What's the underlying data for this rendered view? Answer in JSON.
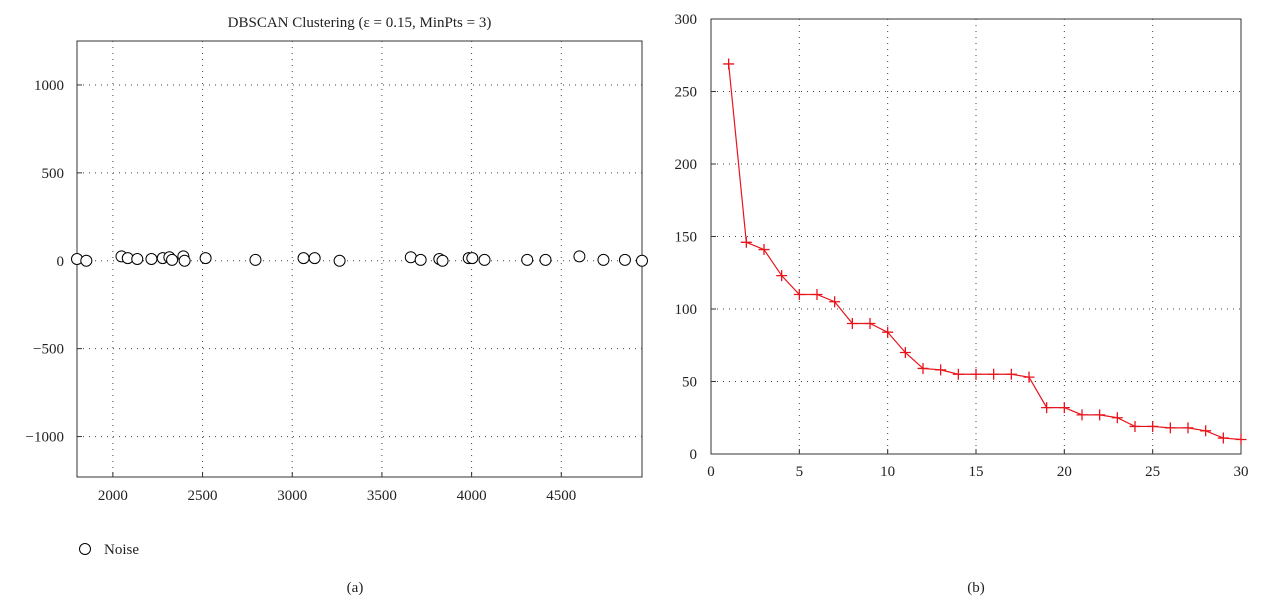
{
  "chart_data": [
    {
      "type": "scatter",
      "title": "DBSCAN Clustering (ε = 0.15, MinPts = 3)",
      "panel_label": "(a)",
      "xlim": [
        1800,
        4950
      ],
      "ylim": [
        -1230,
        1250
      ],
      "xticks": [
        2000,
        2500,
        3000,
        3500,
        4000,
        4500
      ],
      "yticks": [
        1000,
        500,
        0,
        -500,
        -1000
      ],
      "ytick_labels": [
        "1000",
        "500",
        "0",
        "−500",
        "−1000"
      ],
      "grid": true,
      "legend": {
        "position": "bottom-left",
        "entries": [
          {
            "marker": "open-circle",
            "label": "Noise"
          }
        ]
      },
      "series": [
        {
          "name": "Noise",
          "marker": "open-circle",
          "color": "#000000",
          "points": [
            [
              1800,
              10
            ],
            [
              1852,
              0
            ],
            [
              2048,
              25
            ],
            [
              2083,
              15
            ],
            [
              2136,
              10
            ],
            [
              2215,
              10
            ],
            [
              2278,
              15
            ],
            [
              2315,
              20
            ],
            [
              2330,
              5
            ],
            [
              2393,
              25
            ],
            [
              2400,
              0
            ],
            [
              2517,
              15
            ],
            [
              2795,
              5
            ],
            [
              3063,
              15
            ],
            [
              3125,
              15
            ],
            [
              3264,
              0
            ],
            [
              3661,
              20
            ],
            [
              3716,
              5
            ],
            [
              3820,
              10
            ],
            [
              3838,
              0
            ],
            [
              3984,
              15
            ],
            [
              4004,
              15
            ],
            [
              4072,
              5
            ],
            [
              4310,
              5
            ],
            [
              4412,
              5
            ],
            [
              4601,
              25
            ],
            [
              4735,
              5
            ],
            [
              4855,
              5
            ],
            [
              4950,
              0
            ]
          ]
        }
      ]
    },
    {
      "type": "line",
      "panel_label": "(b)",
      "xlim": [
        0,
        30
      ],
      "ylim": [
        0,
        300
      ],
      "xticks": [
        0,
        5,
        10,
        15,
        20,
        25,
        30
      ],
      "yticks": [
        0,
        50,
        100,
        150,
        200,
        250,
        300
      ],
      "grid": true,
      "series": [
        {
          "color": "#e8141b",
          "marker": "plus",
          "x": [
            1,
            2,
            3,
            4,
            5,
            6,
            7,
            8,
            9,
            10,
            11,
            12,
            13,
            14,
            15,
            16,
            17,
            18,
            19,
            20,
            21,
            22,
            23,
            24,
            25,
            26,
            27,
            28,
            29,
            30
          ],
          "y": [
            269,
            146,
            141,
            123,
            110,
            110,
            105,
            90,
            90,
            84,
            70,
            59,
            58,
            55,
            55,
            55,
            55,
            53,
            32,
            32,
            27,
            27,
            25,
            19,
            19,
            18,
            18,
            16,
            11,
            10
          ]
        }
      ]
    }
  ]
}
